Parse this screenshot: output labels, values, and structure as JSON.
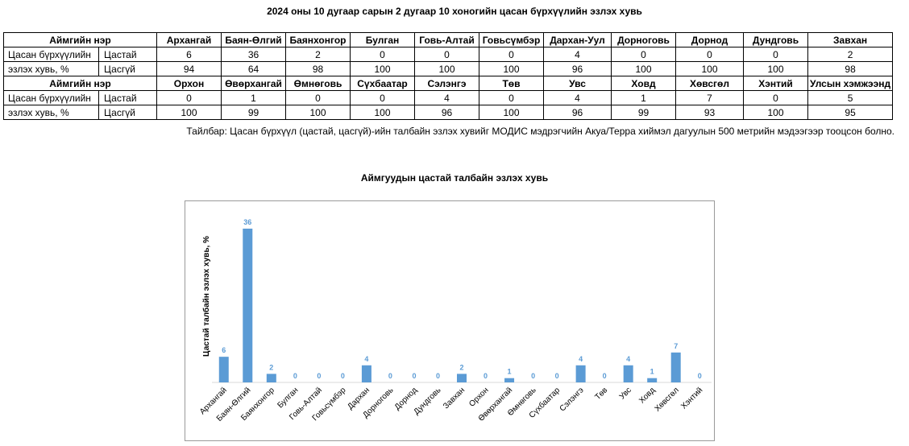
{
  "title": "2024 оны 10 дугаар сарын 2 дугаар 10 хоногийн цасан бүрхүүлийн эзлэх хувь",
  "table": {
    "header_label": "Аймгийн нэр",
    "row_label_line1": "Цасан бүрхүүлийн",
    "row_label_line2": "эзлэх хувь, %",
    "type_thin": "Цастай",
    "type_none": "Цасгүй",
    "block1": {
      "names": [
        "Архангай",
        "Баян-Өлгий",
        "Баянхонгор",
        "Булган",
        "Говь-Алтай",
        "Говьсүмбэр",
        "Дархан-Уул",
        "Дорноговь",
        "Дорнод",
        "Дундговь",
        "Завхан"
      ],
      "snow": [
        "6",
        "36",
        "2",
        "0",
        "0",
        "0",
        "4",
        "0",
        "0",
        "0",
        "2"
      ],
      "nosnow": [
        "94",
        "64",
        "98",
        "100",
        "100",
        "100",
        "96",
        "100",
        "100",
        "100",
        "98"
      ]
    },
    "block2": {
      "names": [
        "Орхон",
        "Өвөрхангай",
        "Өмнөговь",
        "Сүхбаатар",
        "Сэлэнгэ",
        "Төв",
        "Увс",
        "Ховд",
        "Хөвсгөл",
        "Хэнтий",
        "Улсын хэмжээнд"
      ],
      "snow": [
        "0",
        "1",
        "0",
        "0",
        "4",
        "0",
        "4",
        "1",
        "7",
        "0",
        "5"
      ],
      "nosnow": [
        "100",
        "99",
        "100",
        "100",
        "96",
        "100",
        "96",
        "99",
        "93",
        "100",
        "95"
      ]
    }
  },
  "note": "Тайлбар: Цасан бүрхүүл (цастай, цасгүй)-ийн талбайн эзлэх хувийг МОДИС мэдрэгчийн Акуа/Терра хиймэл дагуулын 500 метрийн мэдээгээр тооцсон болно.",
  "chart_data": {
    "type": "bar",
    "title": "Аймгуудын цастай талбайн эзлэх хувь",
    "xlabel": "",
    "ylabel": "Цастай талбайн эзлэх хувь, %",
    "categories": [
      "Архангай",
      "Баян-Өлгий",
      "Баянхонгор",
      "Булган",
      "Говь-Алтай",
      "Говьсүмбэр",
      "Дархан",
      "Дорноговь",
      "Дорнод",
      "Дундговь",
      "Завхан",
      "Орхон",
      "Өвөрхангай",
      "Өмнөговь",
      "Сүхбаатар",
      "Сэлэнгэ",
      "Төв",
      "Увс",
      "Ховд",
      "Хөвсгөл",
      "Хэнтий"
    ],
    "values": [
      6,
      36,
      2,
      0,
      0,
      0,
      4,
      0,
      0,
      0,
      2,
      0,
      1,
      0,
      0,
      4,
      0,
      4,
      1,
      7,
      0
    ],
    "ylim": [
      0,
      36
    ],
    "grid": false,
    "bar_color": "#5b9bd5",
    "label_color": "#5b9bd5"
  }
}
